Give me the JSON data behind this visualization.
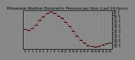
{
  "title": "Milwaukee Weather Barometric Pressure per Hour (Last 24 Hours)",
  "hours": [
    0,
    1,
    2,
    3,
    4,
    5,
    6,
    7,
    8,
    9,
    10,
    11,
    12,
    13,
    14,
    15,
    16,
    17,
    18,
    19,
    20,
    21,
    22,
    23
  ],
  "pressure": [
    29.42,
    29.38,
    29.45,
    29.6,
    29.8,
    29.95,
    30.08,
    30.15,
    30.1,
    29.98,
    29.88,
    29.72,
    29.55,
    29.35,
    29.15,
    28.98,
    28.85,
    28.75,
    28.7,
    28.68,
    28.72,
    28.78,
    28.82,
    28.85
  ],
  "line_color": "#dd0000",
  "marker_color": "#000000",
  "bg_color": "#888888",
  "plot_bg_color": "#888888",
  "grid_color": "#aaaaaa",
  "title_color": "#000000",
  "title_fontsize": 3.8,
  "tick_fontsize": 3.0,
  "ylim": [
    28.6,
    30.2
  ],
  "ytick_values": [
    28.7,
    28.8,
    28.9,
    29.0,
    29.1,
    29.2,
    29.3,
    29.4,
    29.5,
    29.6,
    29.7,
    29.8,
    29.9,
    30.0,
    30.1,
    30.2
  ],
  "border_color": "#000000"
}
